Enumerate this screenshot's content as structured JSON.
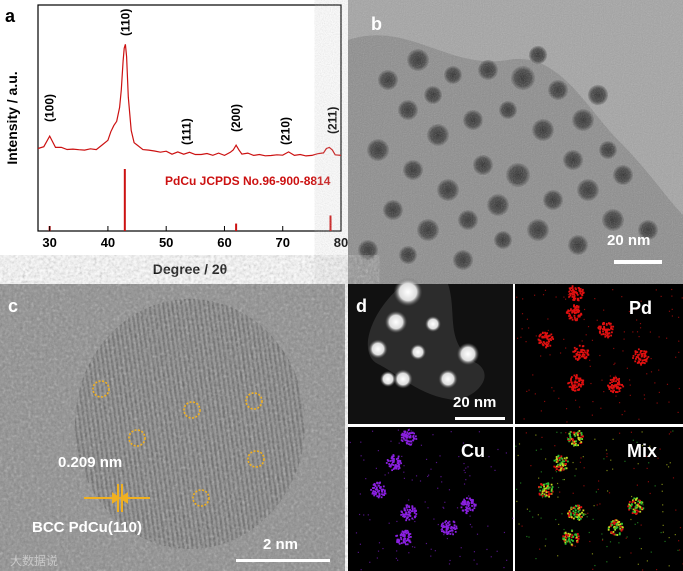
{
  "panels": {
    "a": {
      "label": "a",
      "chart_data": {
        "type": "line",
        "xlabel": "Degree / 2θ",
        "ylabel": "Intensity / a.u.",
        "xlim": [
          28,
          80
        ],
        "x_ticks": [
          "30",
          "40",
          "50",
          "60",
          "70",
          "80"
        ],
        "series": [
          {
            "x": [
              28,
              29,
              30,
              31,
              32,
              33,
              34,
              35,
              36,
              37,
              38,
              39,
              40,
              40.5,
              41,
              41.5,
              42,
              42.3,
              42.6,
              42.8,
              43,
              43.2,
              43.5,
              44,
              44.5,
              45,
              46,
              47,
              48,
              49,
              50,
              51,
              52,
              53,
              54,
              55,
              56,
              57,
              58,
              59,
              60,
              61,
              61.5,
              62,
              62.5,
              63,
              64,
              65,
              66,
              67,
              68,
              69,
              70,
              71,
              72,
              73,
              74,
              75,
              76,
              77,
              77.5,
              78,
              78.5,
              79,
              80
            ],
            "y": [
              0.1,
              0.12,
              0.2,
              0.12,
              0.1,
              0.1,
              0.09,
              0.09,
              0.09,
              0.09,
              0.1,
              0.12,
              0.18,
              0.24,
              0.3,
              0.34,
              0.45,
              0.62,
              0.85,
              0.98,
              1.0,
              0.9,
              0.55,
              0.25,
              0.16,
              0.12,
              0.1,
              0.08,
              0.08,
              0.07,
              0.07,
              0.06,
              0.06,
              0.06,
              0.06,
              0.05,
              0.05,
              0.05,
              0.05,
              0.05,
              0.05,
              0.06,
              0.09,
              0.13,
              0.08,
              0.06,
              0.05,
              0.05,
              0.04,
              0.04,
              0.04,
              0.04,
              0.05,
              0.06,
              0.05,
              0.04,
              0.04,
              0.04,
              0.05,
              0.07,
              0.09,
              0.12,
              0.08,
              0.05,
              0.04
            ]
          }
        ],
        "peak_labels": [
          {
            "text": "(100)",
            "x": 30
          },
          {
            "text": "(110)",
            "x": 43
          },
          {
            "text": "(111)",
            "x": 53.5
          },
          {
            "text": "(200)",
            "x": 62
          },
          {
            "text": "(210)",
            "x": 70.5
          },
          {
            "text": "(211)",
            "x": 78.5
          }
        ],
        "reference": {
          "label": "PdCu JCPDS No.96-900-8814",
          "color": "#cc1111",
          "sticks": [
            {
              "x": 30.0,
              "h": 0.08
            },
            {
              "x": 42.9,
              "h": 1.0
            },
            {
              "x": 62.0,
              "h": 0.12
            },
            {
              "x": 78.2,
              "h": 0.25
            }
          ]
        },
        "line_color": "#cc1111"
      }
    },
    "b": {
      "label": "b",
      "scale_bar": "20 nm"
    },
    "c": {
      "label": "c",
      "scale_bar": "2 nm",
      "lattice_spacing": "0.209 nm",
      "annotation": "BCC PdCu(110)",
      "watermark": "大数据说"
    },
    "d": {
      "label": "d",
      "scale_bar": "20 nm",
      "maps": [
        "Pd",
        "Cu",
        "Mix"
      ]
    }
  },
  "colors": {
    "pd": "#e01010",
    "cu": "#8a20e0",
    "mix": "#c8d820",
    "ring": "#f0b020"
  }
}
